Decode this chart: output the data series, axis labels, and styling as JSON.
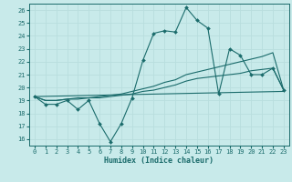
{
  "xlabel": "Humidex (Indice chaleur)",
  "bg_color": "#c8eaea",
  "grid_color": "#b8dede",
  "line_color": "#1a6b6b",
  "xlim": [
    -0.5,
    23.5
  ],
  "ylim": [
    15.5,
    26.5
  ],
  "xticks": [
    0,
    1,
    2,
    3,
    4,
    5,
    6,
    7,
    8,
    9,
    10,
    11,
    12,
    13,
    14,
    15,
    16,
    17,
    18,
    19,
    20,
    21,
    22,
    23
  ],
  "yticks": [
    16,
    17,
    18,
    19,
    20,
    21,
    22,
    23,
    24,
    25,
    26
  ],
  "main_x": [
    0,
    1,
    2,
    3,
    4,
    5,
    6,
    7,
    8,
    9,
    10,
    11,
    12,
    13,
    14,
    15,
    16,
    17,
    18,
    19,
    20,
    21,
    22,
    23
  ],
  "main_y": [
    19.3,
    18.7,
    18.7,
    19.0,
    18.3,
    19.0,
    17.2,
    15.8,
    17.2,
    19.2,
    22.1,
    24.2,
    24.4,
    24.3,
    26.2,
    25.2,
    24.6,
    19.5,
    23.0,
    22.5,
    21.0,
    21.0,
    21.5,
    19.8
  ],
  "line2_x": [
    0,
    1,
    2,
    3,
    4,
    5,
    6,
    7,
    8,
    9,
    10,
    11,
    12,
    13,
    14,
    15,
    16,
    17,
    18,
    19,
    20,
    21,
    22,
    23
  ],
  "line2_y": [
    19.3,
    19.0,
    19.0,
    19.1,
    19.1,
    19.2,
    19.2,
    19.3,
    19.4,
    19.5,
    19.7,
    19.8,
    20.0,
    20.2,
    20.5,
    20.7,
    20.8,
    20.9,
    21.0,
    21.1,
    21.3,
    21.4,
    21.5,
    19.8
  ],
  "line3_x": [
    0,
    1,
    2,
    3,
    4,
    5,
    6,
    7,
    8,
    9,
    10,
    11,
    12,
    13,
    14,
    15,
    16,
    17,
    18,
    19,
    20,
    21,
    22,
    23
  ],
  "line3_y": [
    19.3,
    19.0,
    19.0,
    19.1,
    19.2,
    19.2,
    19.3,
    19.4,
    19.5,
    19.7,
    19.9,
    20.1,
    20.4,
    20.6,
    21.0,
    21.2,
    21.4,
    21.6,
    21.8,
    22.0,
    22.2,
    22.4,
    22.7,
    19.8
  ],
  "line4_x": [
    0,
    23
  ],
  "line4_y": [
    19.3,
    19.7
  ]
}
